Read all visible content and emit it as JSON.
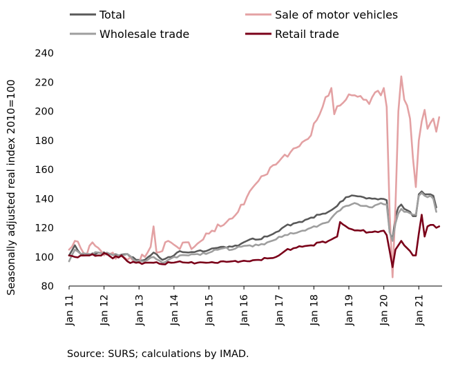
{
  "source_note": "Source: SURS; calculations by IMAD.",
  "chart_data": {
    "type": "line",
    "ylabel": "Seasonally adjusted real index 2010=100",
    "xlabel": "",
    "ylim": [
      80,
      240
    ],
    "yticks": [
      80,
      100,
      120,
      140,
      160,
      180,
      200,
      220,
      240
    ],
    "xlim": [
      "2011-01",
      "2021-09"
    ],
    "xticks": [
      "2011-01",
      "2012-01",
      "2013-01",
      "2014-01",
      "2015-01",
      "2016-01",
      "2017-01",
      "2018-01",
      "2019-01",
      "2020-01",
      "2021-01"
    ],
    "xtick_labels": [
      "Jan 11",
      "Jan 12",
      "Jan 13",
      "Jan 14",
      "Jan 15",
      "Jan 16",
      "Jan 17",
      "Jan 18",
      "Jan 19",
      "Jan 20",
      "Jan 21"
    ],
    "grid": false,
    "legend_position": "top",
    "series": [
      {
        "name": "Total",
        "color": "#595959",
        "anchors": [
          [
            "2011-01",
            101
          ],
          [
            "2011-03",
            108
          ],
          [
            "2011-05",
            102
          ],
          [
            "2011-08",
            101
          ],
          [
            "2011-11",
            103
          ],
          [
            "2012-03",
            102
          ],
          [
            "2012-06",
            101
          ],
          [
            "2012-09",
            102
          ],
          [
            "2012-12",
            98
          ],
          [
            "2013-03",
            98
          ],
          [
            "2013-06",
            103
          ],
          [
            "2013-09",
            98
          ],
          [
            "2013-12",
            100
          ],
          [
            "2014-03",
            104
          ],
          [
            "2014-06",
            103
          ],
          [
            "2014-09",
            104
          ],
          [
            "2014-12",
            104
          ],
          [
            "2015-03",
            106
          ],
          [
            "2015-06",
            107
          ],
          [
            "2015-09",
            107
          ],
          [
            "2015-12",
            109
          ],
          [
            "2016-03",
            112
          ],
          [
            "2016-06",
            112
          ],
          [
            "2016-09",
            114
          ],
          [
            "2016-12",
            117
          ],
          [
            "2017-03",
            121
          ],
          [
            "2017-06",
            123
          ],
          [
            "2017-09",
            124
          ],
          [
            "2017-12",
            127
          ],
          [
            "2018-03",
            129
          ],
          [
            "2018-06",
            131
          ],
          [
            "2018-09",
            135
          ],
          [
            "2018-12",
            141
          ],
          [
            "2019-03",
            142
          ],
          [
            "2019-06",
            141
          ],
          [
            "2019-09",
            140
          ],
          [
            "2019-12",
            140
          ],
          [
            "2020-02",
            139
          ],
          [
            "2020-03",
            117
          ],
          [
            "2020-04",
            112
          ],
          [
            "2020-05",
            128
          ],
          [
            "2020-06",
            134
          ],
          [
            "2020-07",
            136
          ],
          [
            "2020-08",
            133
          ],
          [
            "2020-09",
            132
          ],
          [
            "2020-10",
            131
          ],
          [
            "2020-11",
            128
          ],
          [
            "2020-12",
            128
          ],
          [
            "2021-01",
            143
          ],
          [
            "2021-02",
            145
          ],
          [
            "2021-03",
            143
          ],
          [
            "2021-04",
            143
          ],
          [
            "2021-05",
            143
          ],
          [
            "2021-06",
            142
          ],
          [
            "2021-07",
            134
          ]
        ]
      },
      {
        "name": "Sale of motor vehicles",
        "color": "#E3A1A3",
        "anchors": [
          [
            "2011-01",
            105
          ],
          [
            "2011-03",
            111
          ],
          [
            "2011-05",
            106
          ],
          [
            "2011-07",
            101
          ],
          [
            "2011-09",
            110
          ],
          [
            "2011-12",
            104
          ],
          [
            "2012-03",
            102
          ],
          [
            "2012-06",
            101
          ],
          [
            "2012-09",
            98
          ],
          [
            "2012-12",
            97
          ],
          [
            "2013-03",
            100
          ],
          [
            "2013-05",
            107
          ],
          [
            "2013-06",
            121
          ],
          [
            "2013-07",
            103
          ],
          [
            "2013-09",
            104
          ],
          [
            "2013-11",
            111
          ],
          [
            "2014-02",
            107
          ],
          [
            "2014-05",
            110
          ],
          [
            "2014-08",
            107
          ],
          [
            "2014-11",
            112
          ],
          [
            "2015-02",
            118
          ],
          [
            "2015-05",
            121
          ],
          [
            "2015-08",
            126
          ],
          [
            "2015-11",
            131
          ],
          [
            "2016-02",
            141
          ],
          [
            "2016-05",
            150
          ],
          [
            "2016-08",
            156
          ],
          [
            "2016-11",
            163
          ],
          [
            "2017-02",
            168
          ],
          [
            "2017-05",
            172
          ],
          [
            "2017-08",
            176
          ],
          [
            "2017-11",
            181
          ],
          [
            "2018-02",
            194
          ],
          [
            "2018-04",
            203
          ],
          [
            "2018-07",
            216
          ],
          [
            "2018-08",
            198
          ],
          [
            "2018-10",
            204
          ],
          [
            "2018-12",
            208
          ],
          [
            "2019-02",
            211
          ],
          [
            "2019-04",
            210
          ],
          [
            "2019-06",
            208
          ],
          [
            "2019-08",
            205
          ],
          [
            "2019-10",
            213
          ],
          [
            "2019-12",
            211
          ],
          [
            "2020-01",
            216
          ],
          [
            "2020-02",
            203
          ],
          [
            "2020-03",
            130
          ],
          [
            "2020-04",
            86
          ],
          [
            "2020-05",
            135
          ],
          [
            "2020-06",
            200
          ],
          [
            "2020-07",
            224
          ],
          [
            "2020-08",
            208
          ],
          [
            "2020-09",
            204
          ],
          [
            "2020-10",
            195
          ],
          [
            "2020-11",
            168
          ],
          [
            "2020-12",
            148
          ],
          [
            "2021-01",
            180
          ],
          [
            "2021-02",
            193
          ],
          [
            "2021-03",
            201
          ],
          [
            "2021-04",
            188
          ],
          [
            "2021-05",
            192
          ],
          [
            "2021-06",
            195
          ],
          [
            "2021-07",
            186
          ],
          [
            "2021-08",
            196
          ]
        ]
      },
      {
        "name": "Wholesale trade",
        "color": "#9E9E9E",
        "anchors": [
          [
            "2011-01",
            97
          ],
          [
            "2011-03",
            105
          ],
          [
            "2011-05",
            102
          ],
          [
            "2011-08",
            102
          ],
          [
            "2011-11",
            103
          ],
          [
            "2012-03",
            102
          ],
          [
            "2012-06",
            101
          ],
          [
            "2012-09",
            102
          ],
          [
            "2012-12",
            97
          ],
          [
            "2013-03",
            97
          ],
          [
            "2013-06",
            100
          ],
          [
            "2013-09",
            96
          ],
          [
            "2013-12",
            99
          ],
          [
            "2014-03",
            101
          ],
          [
            "2014-06",
            101
          ],
          [
            "2014-09",
            102
          ],
          [
            "2014-12",
            102
          ],
          [
            "2015-03",
            105
          ],
          [
            "2015-06",
            106
          ],
          [
            "2015-09",
            105
          ],
          [
            "2015-12",
            107
          ],
          [
            "2016-03",
            108
          ],
          [
            "2016-06",
            108
          ],
          [
            "2016-09",
            110
          ],
          [
            "2016-12",
            112
          ],
          [
            "2017-03",
            115
          ],
          [
            "2017-06",
            116
          ],
          [
            "2017-09",
            118
          ],
          [
            "2017-12",
            120
          ],
          [
            "2018-03",
            122
          ],
          [
            "2018-06",
            124
          ],
          [
            "2018-09",
            131
          ],
          [
            "2018-12",
            135
          ],
          [
            "2019-03",
            137
          ],
          [
            "2019-06",
            135
          ],
          [
            "2019-09",
            134
          ],
          [
            "2019-12",
            137
          ],
          [
            "2020-02",
            136
          ],
          [
            "2020-03",
            117
          ],
          [
            "2020-04",
            111
          ],
          [
            "2020-05",
            123
          ],
          [
            "2020-06",
            130
          ],
          [
            "2020-07",
            133
          ],
          [
            "2020-08",
            131
          ],
          [
            "2020-09",
            131
          ],
          [
            "2020-10",
            130
          ],
          [
            "2020-11",
            129
          ],
          [
            "2020-12",
            129
          ],
          [
            "2021-01",
            142
          ],
          [
            "2021-02",
            144
          ],
          [
            "2021-03",
            142
          ],
          [
            "2021-04",
            141
          ],
          [
            "2021-05",
            142
          ],
          [
            "2021-06",
            140
          ],
          [
            "2021-07",
            131
          ]
        ]
      },
      {
        "name": "Retail trade",
        "color": "#7A0019",
        "anchors": [
          [
            "2011-01",
            101
          ],
          [
            "2011-03",
            100
          ],
          [
            "2011-05",
            101
          ],
          [
            "2011-08",
            101
          ],
          [
            "2011-11",
            101
          ],
          [
            "2012-02",
            102
          ],
          [
            "2012-04",
            99
          ],
          [
            "2012-07",
            101
          ],
          [
            "2012-09",
            97
          ],
          [
            "2012-12",
            96
          ],
          [
            "2013-03",
            96
          ],
          [
            "2013-06",
            96
          ],
          [
            "2013-09",
            95
          ],
          [
            "2013-12",
            96
          ],
          [
            "2014-03",
            97
          ],
          [
            "2014-06",
            96
          ],
          [
            "2014-09",
            96
          ],
          [
            "2014-12",
            96
          ],
          [
            "2015-03",
            96
          ],
          [
            "2015-06",
            97
          ],
          [
            "2015-09",
            97
          ],
          [
            "2015-12",
            97
          ],
          [
            "2016-03",
            97
          ],
          [
            "2016-06",
            98
          ],
          [
            "2016-09",
            99
          ],
          [
            "2016-12",
            100
          ],
          [
            "2017-03",
            104
          ],
          [
            "2017-06",
            106
          ],
          [
            "2017-09",
            107
          ],
          [
            "2017-12",
            108
          ],
          [
            "2018-03",
            110
          ],
          [
            "2018-06",
            111
          ],
          [
            "2018-09",
            114
          ],
          [
            "2018-10",
            124
          ],
          [
            "2018-12",
            121
          ],
          [
            "2019-02",
            119
          ],
          [
            "2019-05",
            118
          ],
          [
            "2019-08",
            117
          ],
          [
            "2019-11",
            117
          ],
          [
            "2020-01",
            118
          ],
          [
            "2020-02",
            115
          ],
          [
            "2020-03",
            104
          ],
          [
            "2020-04",
            93
          ],
          [
            "2020-05",
            105
          ],
          [
            "2020-06",
            108
          ],
          [
            "2020-07",
            111
          ],
          [
            "2020-08",
            108
          ],
          [
            "2020-09",
            106
          ],
          [
            "2020-10",
            104
          ],
          [
            "2020-11",
            101
          ],
          [
            "2020-12",
            101
          ],
          [
            "2021-01",
            116
          ],
          [
            "2021-02",
            129
          ],
          [
            "2021-03",
            114
          ],
          [
            "2021-04",
            121
          ],
          [
            "2021-05",
            122
          ],
          [
            "2021-06",
            122
          ],
          [
            "2021-07",
            120
          ],
          [
            "2021-08",
            121
          ]
        ]
      }
    ]
  }
}
